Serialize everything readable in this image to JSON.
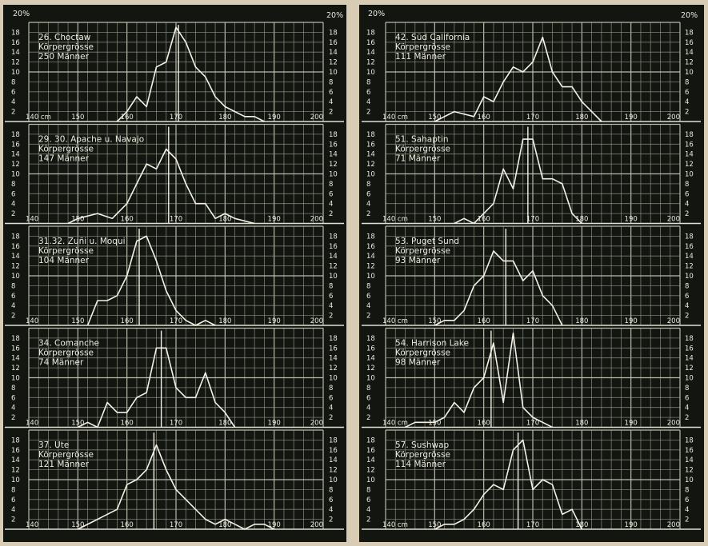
{
  "pct_label": "20%",
  "chart_data": [
    {
      "type": "line",
      "column": "left",
      "row": 0,
      "label": [
        "26. Choctaw",
        "Körpergrösse",
        "250 Männer"
      ],
      "xlim": [
        140,
        200
      ],
      "ylim": [
        0,
        20
      ],
      "x_ticks": [
        "140 cm",
        "150",
        "160",
        "170",
        "180",
        "190",
        "200"
      ],
      "y_ticks": [
        "2",
        "4",
        "6",
        "8",
        "10",
        "12",
        "14",
        "16",
        "18"
      ],
      "mean": 170.5,
      "series": [
        {
          "x": [
            158,
            160,
            162,
            164,
            166,
            168,
            170,
            172,
            174,
            176,
            178,
            180,
            182,
            184,
            186,
            188
          ],
          "y": [
            0,
            2,
            5,
            3,
            11,
            12,
            19,
            16,
            11,
            9,
            5,
            3,
            2,
            1,
            1,
            0
          ]
        }
      ]
    },
    {
      "type": "line",
      "column": "left",
      "row": 1,
      "label": [
        "29. 30. Apache u. Navajo",
        "Körpergrösse",
        "147 Männer"
      ],
      "xlim": [
        140,
        200
      ],
      "ylim": [
        0,
        20
      ],
      "x_ticks": [
        "140",
        "150",
        "160",
        "170",
        "180",
        "190",
        "200"
      ],
      "y_ticks": [
        "2",
        "4",
        "6",
        "8",
        "10",
        "12",
        "14",
        "16",
        "18"
      ],
      "mean": 168.5,
      "series": [
        {
          "x": [
            148,
            150,
            154,
            157,
            160,
            162,
            164,
            166,
            168,
            170,
            172,
            174,
            176,
            178,
            180,
            182,
            186
          ],
          "y": [
            0,
            1,
            2,
            1,
            4,
            8,
            12,
            11,
            15,
            13,
            8,
            4,
            4,
            1,
            2,
            1,
            0
          ]
        }
      ]
    },
    {
      "type": "line",
      "column": "left",
      "row": 2,
      "label": [
        "31.32. Zuñi u. Moqui",
        "Körpergrösse",
        "104 Männer"
      ],
      "xlim": [
        140,
        200
      ],
      "ylim": [
        0,
        20
      ],
      "x_ticks": [
        "140",
        "150",
        "160",
        "170",
        "180",
        "190",
        "200"
      ],
      "y_ticks": [
        "2",
        "4",
        "6",
        "8",
        "10",
        "12",
        "14",
        "16",
        "18"
      ],
      "mean": 162.5,
      "series": [
        {
          "x": [
            152,
            154,
            156,
            158,
            160,
            162,
            164,
            166,
            168,
            170,
            172,
            174,
            176,
            178
          ],
          "y": [
            0,
            5,
            5,
            6,
            10,
            17,
            18,
            13,
            7,
            3,
            1,
            0,
            1,
            0
          ]
        }
      ]
    },
    {
      "type": "line",
      "column": "left",
      "row": 3,
      "label": [
        "34. Comanche",
        "Körpergrösse",
        "74 Männer"
      ],
      "xlim": [
        140,
        200
      ],
      "ylim": [
        0,
        20
      ],
      "x_ticks": [
        "140",
        "150",
        "160",
        "170",
        "180",
        "190",
        "200"
      ],
      "y_ticks": [
        "2",
        "4",
        "6",
        "8",
        "10",
        "12",
        "14",
        "16",
        "18"
      ],
      "mean": 167,
      "series": [
        {
          "x": [
            150,
            152,
            154,
            156,
            158,
            160,
            162,
            164,
            166,
            168,
            170,
            172,
            174,
            176,
            178,
            180,
            182
          ],
          "y": [
            0,
            1,
            0,
            5,
            3,
            3,
            6,
            7,
            16,
            16,
            8,
            6,
            6,
            11,
            5,
            3,
            0
          ]
        }
      ]
    },
    {
      "type": "line",
      "column": "left",
      "row": 4,
      "label": [
        "37. Ute",
        "Körpergrösse",
        "121 Männer"
      ],
      "xlim": [
        140,
        200
      ],
      "ylim": [
        0,
        20
      ],
      "x_ticks": [
        "140",
        "150",
        "160",
        "170",
        "180",
        "190",
        "200"
      ],
      "y_ticks": [
        "2",
        "4",
        "6",
        "8",
        "10",
        "12",
        "14",
        "16",
        "18"
      ],
      "mean": 165.5,
      "series": [
        {
          "x": [
            150,
            154,
            158,
            160,
            162,
            164,
            166,
            168,
            170,
            172,
            174,
            176,
            178,
            180,
            182,
            184,
            186,
            188,
            190
          ],
          "y": [
            0,
            2,
            4,
            9,
            10,
            12,
            17,
            12,
            8,
            6,
            4,
            2,
            1,
            2,
            1,
            0,
            1,
            1,
            0
          ]
        }
      ]
    },
    {
      "type": "line",
      "column": "right",
      "row": 0,
      "label": [
        "42. Süd California",
        "Körpergrösse",
        "111 Männer"
      ],
      "xlim": [
        140,
        200
      ],
      "ylim": [
        0,
        20
      ],
      "x_ticks": [
        "140 cm",
        "150",
        "160",
        "170",
        "180",
        "190",
        "200"
      ],
      "y_ticks": [
        "2",
        "4",
        "6",
        "8",
        "10",
        "12",
        "14",
        "16",
        "18"
      ],
      "mean": null,
      "series": [
        {
          "x": [
            150,
            154,
            158,
            160,
            162,
            164,
            166,
            168,
            170,
            172,
            174,
            176,
            178,
            180,
            182,
            184
          ],
          "y": [
            0,
            2,
            1,
            5,
            4,
            8,
            11,
            10,
            12,
            17,
            10,
            7,
            7,
            4,
            2,
            0
          ]
        }
      ]
    },
    {
      "type": "line",
      "column": "right",
      "row": 1,
      "label": [
        "51. Sahaptin",
        "Körpergrösse",
        "71 Männer"
      ],
      "xlim": [
        140,
        200
      ],
      "ylim": [
        0,
        20
      ],
      "x_ticks": [
        "140 cm",
        "150",
        "160",
        "170",
        "180",
        "190",
        "200"
      ],
      "y_ticks": [
        "2",
        "4",
        "6",
        "8",
        "10",
        "12",
        "14",
        "16",
        "18"
      ],
      "mean": 169,
      "series": [
        {
          "x": [
            154,
            156,
            158,
            160,
            162,
            164,
            166,
            168,
            170,
            172,
            174,
            176,
            178,
            180
          ],
          "y": [
            0,
            1,
            0,
            2,
            4,
            11,
            7,
            17,
            17,
            9,
            9,
            8,
            2,
            0
          ]
        }
      ]
    },
    {
      "type": "line",
      "column": "right",
      "row": 2,
      "label": [
        "53. Puget Sund",
        "Körpergrösse",
        "93 Männer"
      ],
      "xlim": [
        140,
        200
      ],
      "ylim": [
        0,
        20
      ],
      "x_ticks": [
        "140 cm",
        "150",
        "160",
        "170",
        "180",
        "190",
        "200"
      ],
      "y_ticks": [
        "2",
        "4",
        "6",
        "8",
        "10",
        "12",
        "14",
        "16",
        "18"
      ],
      "mean": 164.5,
      "series": [
        {
          "x": [
            150,
            152,
            154,
            156,
            158,
            160,
            162,
            164,
            166,
            168,
            170,
            172,
            174,
            176
          ],
          "y": [
            0,
            1,
            1,
            3,
            8,
            10,
            15,
            13,
            13,
            9,
            11,
            6,
            4,
            0
          ]
        }
      ]
    },
    {
      "type": "line",
      "column": "right",
      "row": 3,
      "label": [
        "54. Harrison Lake",
        "Körpergrösse",
        "98 Männer"
      ],
      "xlim": [
        140,
        200
      ],
      "ylim": [
        0,
        20
      ],
      "x_ticks": [
        "140 cm",
        "150",
        "160",
        "170",
        "180",
        "190",
        "200"
      ],
      "y_ticks": [
        "2",
        "4",
        "6",
        "8",
        "10",
        "12",
        "14",
        "16",
        "18"
      ],
      "mean": 161.5,
      "series": [
        {
          "x": [
            144,
            146,
            150,
            152,
            154,
            156,
            158,
            160,
            162,
            164,
            166,
            168,
            170,
            172,
            174
          ],
          "y": [
            0,
            1,
            1,
            2,
            5,
            3,
            8,
            10,
            17,
            5,
            19,
            4,
            2,
            1,
            0
          ]
        }
      ]
    },
    {
      "type": "line",
      "column": "right",
      "row": 4,
      "label": [
        "57. Sushwap",
        "Körpergrösse",
        "114 Männer"
      ],
      "xlim": [
        140,
        200
      ],
      "ylim": [
        0,
        20
      ],
      "x_ticks": [
        "140 cm",
        "150",
        "160",
        "170",
        "180",
        "190",
        "200"
      ],
      "y_ticks": [
        "2",
        "4",
        "6",
        "8",
        "10",
        "12",
        "14",
        "16",
        "18"
      ],
      "mean": 167,
      "series": [
        {
          "x": [
            150,
            152,
            154,
            156,
            158,
            160,
            162,
            164,
            166,
            168,
            170,
            172,
            174,
            176,
            178,
            180
          ],
          "y": [
            0,
            1,
            1,
            2,
            4,
            7,
            9,
            8,
            16,
            18,
            8,
            10,
            9,
            3,
            4,
            0
          ]
        }
      ]
    }
  ]
}
